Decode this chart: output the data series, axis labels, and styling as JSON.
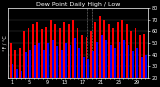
{
  "title": "Dew Point Daily High / Low",
  "background_color": "#000000",
  "plot_bg": "#000000",
  "fig_bg": "#000000",
  "grid_color": "#444444",
  "bar_width": 0.42,
  "highs": [
    50,
    44,
    46,
    60,
    63,
    66,
    68,
    62,
    64,
    70,
    66,
    63,
    68,
    66,
    70,
    63,
    57,
    55,
    60,
    68,
    73,
    70,
    66,
    63,
    68,
    70,
    66,
    60,
    63,
    57,
    58
  ],
  "lows": [
    32,
    28,
    26,
    42,
    44,
    48,
    50,
    44,
    50,
    53,
    47,
    44,
    50,
    48,
    54,
    46,
    38,
    36,
    43,
    51,
    57,
    53,
    48,
    46,
    51,
    53,
    48,
    43,
    46,
    38,
    40
  ],
  "high_color": "#ff0000",
  "low_color": "#0000ff",
  "ylim": [
    20,
    80
  ],
  "ytick_vals": [
    20,
    30,
    40,
    50,
    60,
    70,
    80
  ],
  "ytick_labels": [
    "20",
    "30",
    "40",
    "50",
    "60",
    "70",
    "80"
  ],
  "tick_fontsize": 3.5,
  "title_fontsize": 4.5,
  "text_color": "#ffffff",
  "border_color": "#ffffff",
  "dashed_line_indices": [
    17,
    18
  ],
  "dashed_color": "#888888"
}
